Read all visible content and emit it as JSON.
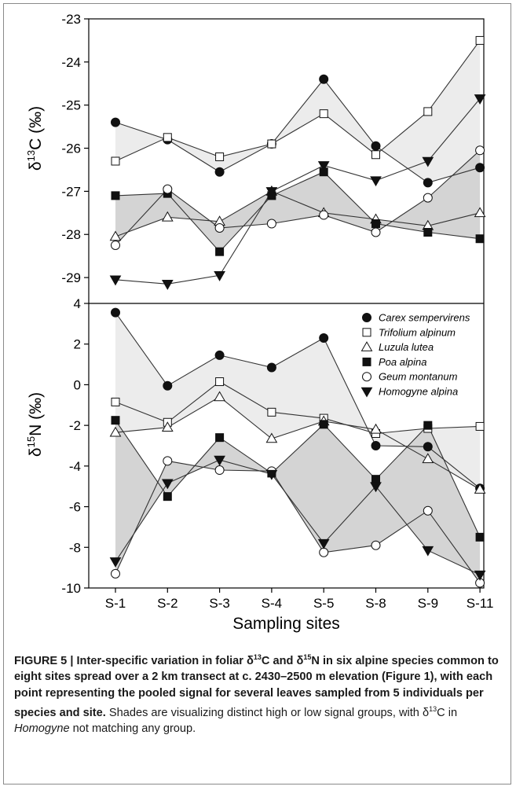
{
  "chart_data": [
    {
      "type": "line",
      "ylabel_main": "δ",
      "ylabel_sup": "13",
      "ylabel_tail": "C (‰)",
      "ylim": [
        -29.6,
        -23
      ],
      "yticks": [
        "-23",
        "-24",
        "-25",
        "-26",
        "-27",
        "-28",
        "-29"
      ],
      "grid": false,
      "series": [
        {
          "name": "Carex sempervirens",
          "marker": "circle-filled",
          "values": [
            -25.4,
            -25.8,
            -26.55,
            -25.9,
            -24.4,
            -25.95,
            -26.8,
            -26.45
          ]
        },
        {
          "name": "Trifolium alpinum",
          "marker": "square-open",
          "values": [
            -26.3,
            -25.75,
            -26.2,
            -25.9,
            -25.2,
            -26.15,
            -25.15,
            -23.5
          ]
        },
        {
          "name": "Luzula lutea",
          "marker": "triangle-open",
          "values": [
            -28.05,
            -27.6,
            -27.7,
            -27.0,
            -27.5,
            -27.65,
            -27.8,
            -27.5
          ]
        },
        {
          "name": "Poa alpina",
          "marker": "square-filled",
          "values": [
            -27.1,
            -27.05,
            -28.4,
            -27.1,
            -26.55,
            -27.75,
            -27.95,
            -28.1
          ]
        },
        {
          "name": "Geum montanum",
          "marker": "circle-open",
          "values": [
            -28.25,
            -26.95,
            -27.85,
            -27.75,
            -27.55,
            -27.95,
            -27.15,
            -26.05
          ]
        },
        {
          "name": "Homogyne alpina",
          "marker": "triangle-down-filled",
          "values": [
            -29.05,
            -29.15,
            -28.95,
            -27.0,
            -26.4,
            -26.75,
            -26.3,
            -24.85
          ]
        }
      ]
    },
    {
      "type": "line",
      "ylabel_main": "δ",
      "ylabel_sup": "15",
      "ylabel_tail": "N (‰)",
      "ylim": [
        -10,
        4
      ],
      "yticks": [
        "4",
        "2",
        "0",
        "-2",
        "-4",
        "-6",
        "-8",
        "-10"
      ],
      "grid": false,
      "legend_position": "top-right",
      "series": [
        {
          "name": "Carex sempervirens",
          "marker": "circle-filled",
          "values": [
            3.55,
            -0.05,
            1.45,
            0.85,
            2.3,
            -3.0,
            -3.05,
            -5.1
          ]
        },
        {
          "name": "Trifolium alpinum",
          "marker": "square-open",
          "values": [
            -0.85,
            -1.85,
            0.15,
            -1.35,
            -1.65,
            -2.4,
            -2.15,
            -2.05
          ]
        },
        {
          "name": "Luzula lutea",
          "marker": "triangle-open",
          "values": [
            -2.35,
            -2.1,
            -0.6,
            -2.65,
            -1.8,
            -2.2,
            -3.65,
            -5.15
          ]
        },
        {
          "name": "Poa alpina",
          "marker": "square-filled",
          "values": [
            -1.75,
            -5.5,
            -2.6,
            -4.35,
            -1.95,
            -4.65,
            -2.0,
            -7.5
          ]
        },
        {
          "name": "Geum montanum",
          "marker": "circle-open",
          "values": [
            -9.3,
            -3.75,
            -4.2,
            -4.25,
            -8.25,
            -7.9,
            -6.2,
            -9.75
          ]
        },
        {
          "name": "Homogyne alpina",
          "marker": "triangle-down-filled",
          "values": [
            -8.7,
            -4.85,
            -3.7,
            -4.4,
            -7.8,
            -5.0,
            -8.15,
            -9.35
          ]
        }
      ]
    }
  ],
  "x_categories": [
    "S-1",
    "S-2",
    "S-3",
    "S-4",
    "S-5",
    "S-8",
    "S-9",
    "S-11"
  ],
  "xlabel": "Sampling sites",
  "colors": {
    "shade_light": "#ececec",
    "shade_dark": "#d4d4d4",
    "line": "#333333"
  },
  "caption": {
    "bold_1": "FIGURE 5 | Inter-specific variation in foliar δ",
    "bold_sup_1": "13",
    "bold_2": "C and δ",
    "bold_sup_2": "15",
    "bold_3": "N in six alpine species common to eight sites spread over a 2 km transect at c. 2430–2500 m elevation (Figure 1), with each point representing the pooled signal for several leaves sampled from 5 individuals per species and site.",
    "normal_1": " Shades are visualizing distinct high or low signal groups, with δ",
    "normal_sup": "13",
    "normal_2": "C in ",
    "normal_italic": "Homogyne",
    "normal_3": " not matching any group."
  }
}
